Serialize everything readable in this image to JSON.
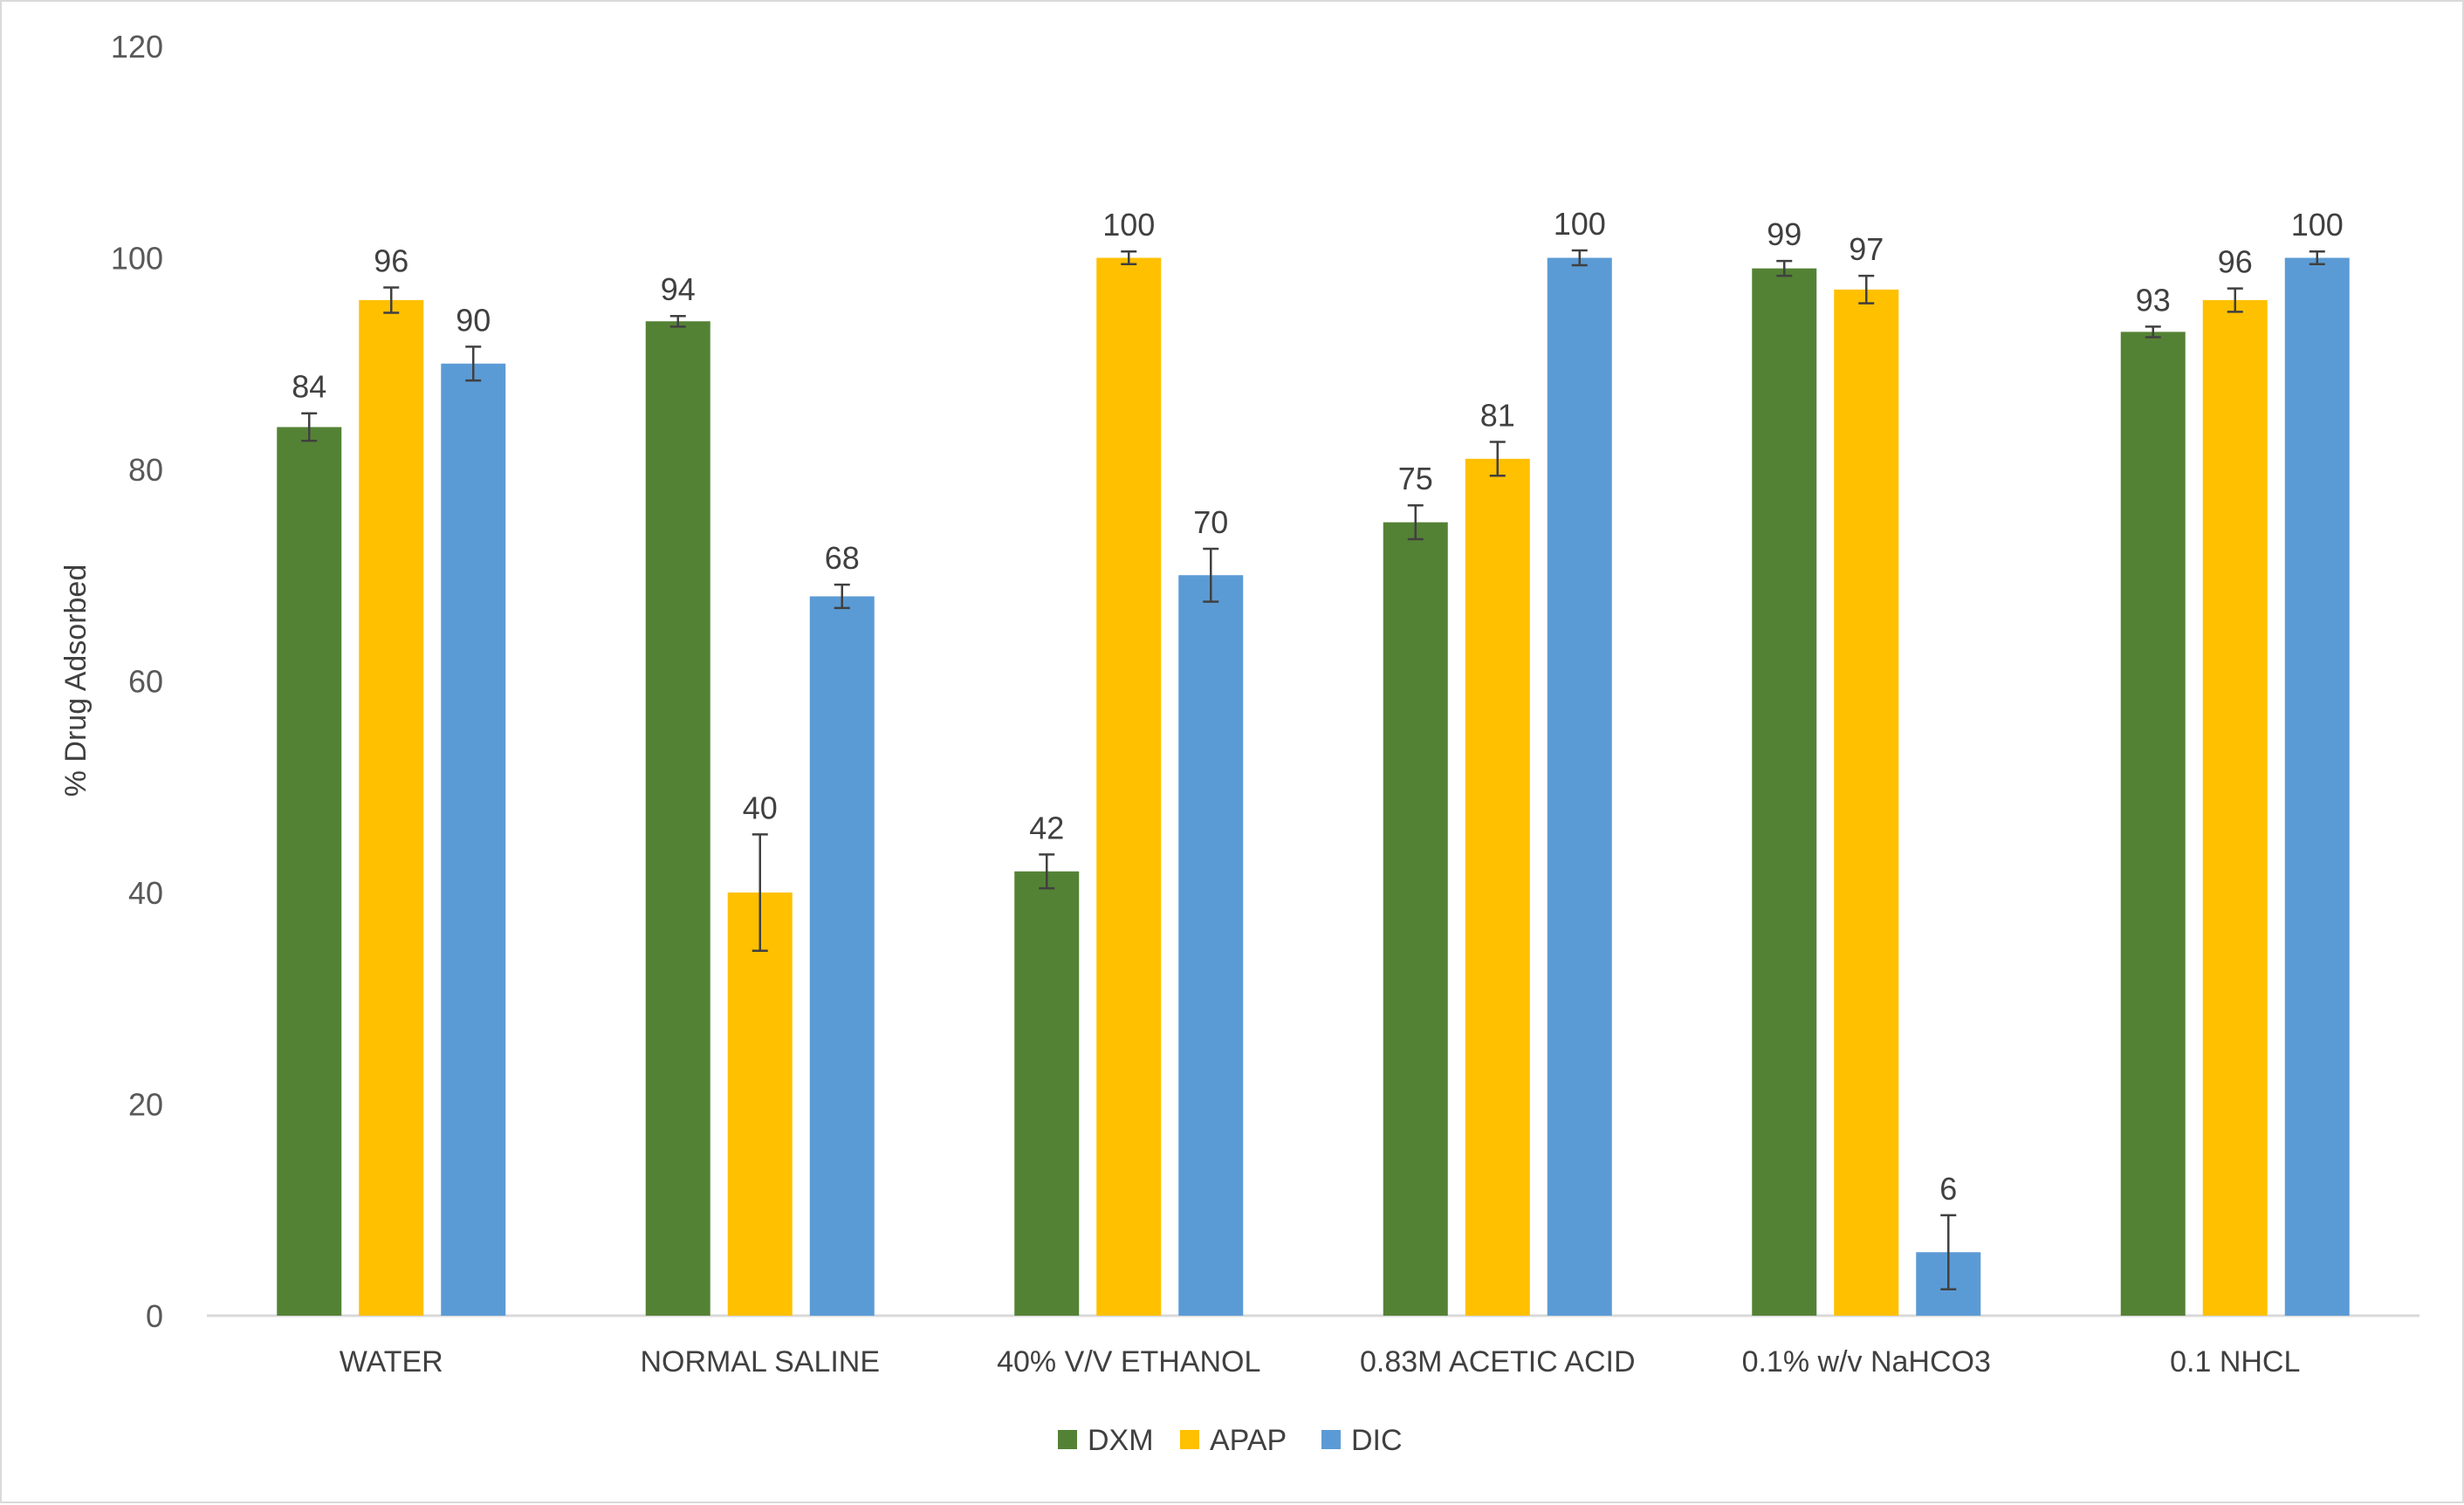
{
  "chart_data": {
    "type": "bar",
    "title": "",
    "xlabel": "",
    "ylabel": "% Drug Adsorbed",
    "ylim": [
      0,
      120
    ],
    "yticks": [
      0,
      20,
      40,
      60,
      80,
      100,
      120
    ],
    "grid": false,
    "legend_position": "bottom",
    "categories": [
      "WATER",
      "NORMAL SALINE",
      "40% V/V ETHANOL",
      "0.83M ACETIC ACID",
      "0.1%  w/v NaHCO3",
      "0.1 NHCL"
    ],
    "series": [
      {
        "name": "DXM",
        "color": "#548235",
        "values": [
          84,
          94,
          42,
          75,
          99,
          93
        ],
        "errors": [
          1.3,
          0.5,
          1.6,
          1.6,
          0.7,
          0.5
        ]
      },
      {
        "name": "APAP",
        "color": "#ffc000",
        "values": [
          96,
          40,
          100,
          81,
          97,
          96
        ],
        "errors": [
          1.2,
          5.5,
          0.6,
          1.6,
          1.3,
          1.1
        ]
      },
      {
        "name": "DIC",
        "color": "#5b9bd5",
        "values": [
          90,
          68,
          70,
          100,
          6,
          100
        ],
        "errors": [
          1.6,
          1.1,
          2.5,
          0.7,
          3.5,
          0.6
        ]
      }
    ],
    "data_labels": [
      [
        "84",
        "94",
        "42",
        "75",
        "99",
        "93"
      ],
      [
        "96",
        "40",
        "100",
        "81",
        "97",
        "96"
      ],
      [
        "90",
        "68",
        "70",
        "100",
        "6",
        "100"
      ]
    ]
  }
}
